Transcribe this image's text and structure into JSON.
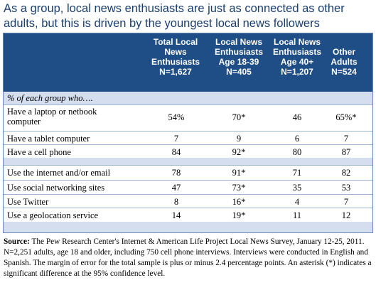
{
  "title": "As a group, local news enthusiasts are just as connected as other adults, but this is driven by the youngest local news followers",
  "chart_data": {
    "type": "table",
    "columns": [
      {
        "lines": [
          "Total Local",
          "News",
          "Enthusiasts",
          "N=1,627"
        ]
      },
      {
        "lines": [
          "Local News",
          "Enthusiasts",
          "Age 18-39",
          "N=405"
        ]
      },
      {
        "lines": [
          "Local News",
          "Enthusiasts",
          "Age 40+",
          "N=1,207"
        ]
      },
      {
        "lines": [
          "Other",
          "Adults",
          "N=524"
        ]
      }
    ],
    "subheader": "% of each group who….",
    "rows": [
      {
        "label": [
          "Have a laptop or netbook",
          "computer"
        ],
        "values": [
          "54%",
          "70*",
          "46",
          "65%*"
        ]
      },
      {
        "label": [
          "Have a tablet computer"
        ],
        "values": [
          "7",
          "9",
          "6",
          "7"
        ]
      },
      {
        "label": [
          "Have a cell phone"
        ],
        "values": [
          "84",
          "92*",
          "80",
          "87"
        ]
      },
      {
        "label": [
          "Use the internet and/or email"
        ],
        "values": [
          "78",
          "91*",
          "71",
          "82"
        ]
      },
      {
        "label": [
          "Use social networking sites"
        ],
        "values": [
          "47",
          "73*",
          "35",
          "53"
        ]
      },
      {
        "label": [
          "Use Twitter"
        ],
        "values": [
          "8",
          "16*",
          "4",
          "7"
        ]
      },
      {
        "label": [
          "Use a geolocation service"
        ],
        "values": [
          "14",
          "19*",
          "11",
          "12"
        ]
      }
    ]
  },
  "footnote": {
    "source_label": "Source:",
    "text": " The Pew Research Center's Internet & American Life Project Local News Survey, January 12-25, 2011. N=2,251 adults, age 18 and older, including 750 cell phone interviews. Interviews were conducted in English and Spanish. The margin of error for the total sample is plus or minus 2.4 percentage points.  An asterisk (*) indicates a significant difference at the 95% confidence level."
  },
  "colors": {
    "header": "#1f4e86",
    "band": "#d4deee",
    "title": "#1a3e6e"
  }
}
